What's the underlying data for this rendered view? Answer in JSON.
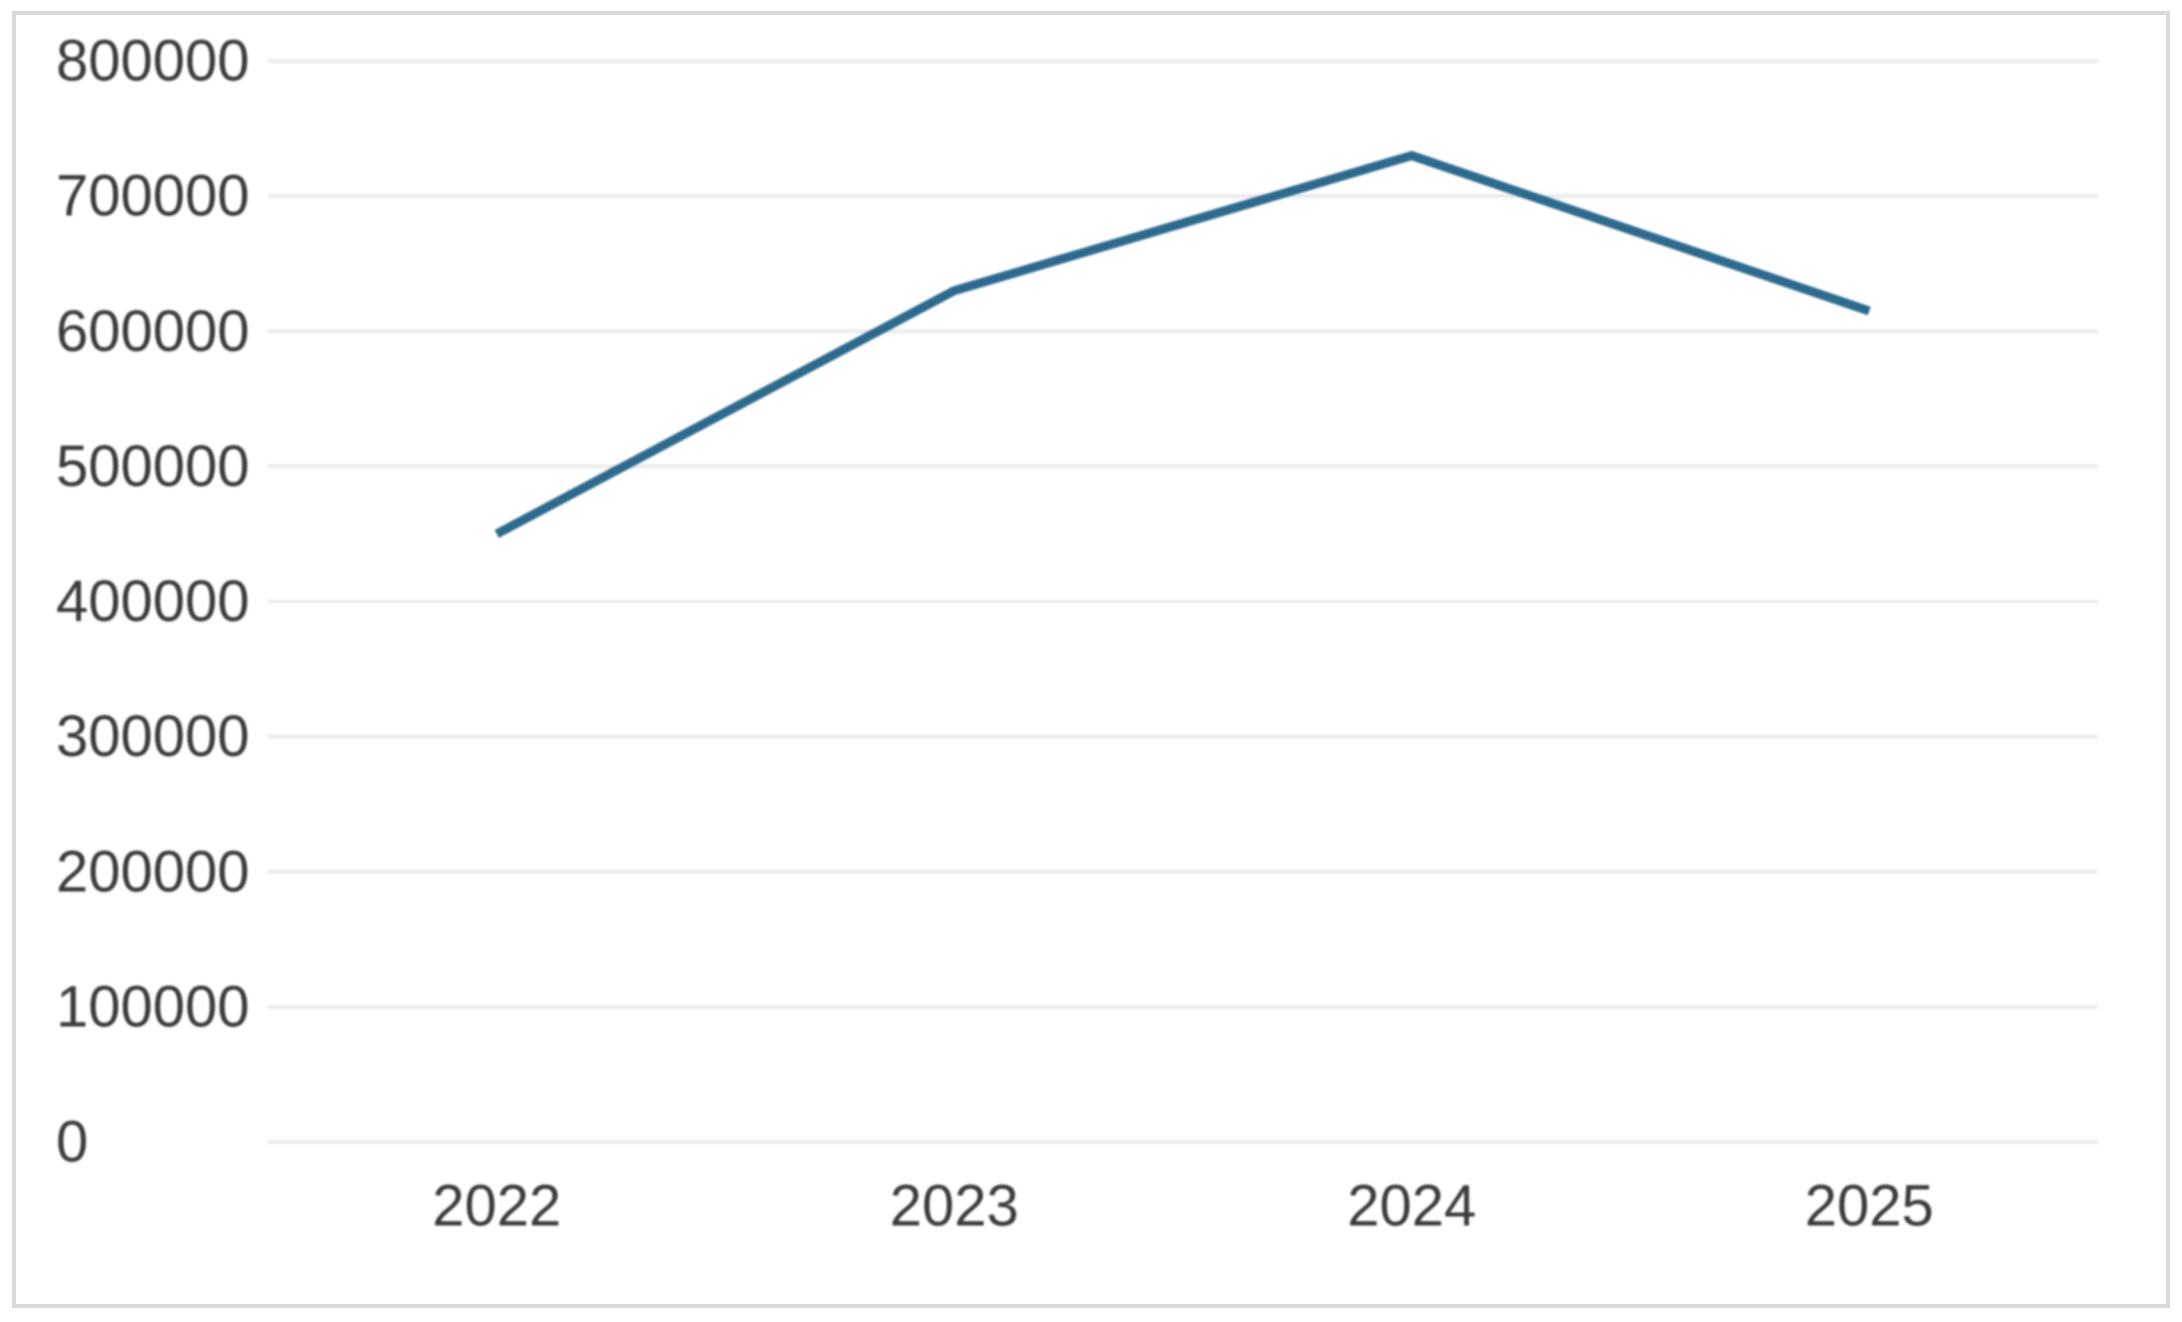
{
  "page": {
    "background": "#ffffff",
    "card_border_color": "#d9d9d9"
  },
  "chart_data": {
    "type": "line",
    "title": "",
    "xlabel": "",
    "ylabel": "",
    "categories": [
      "2022",
      "2023",
      "2024",
      "2025"
    ],
    "values": [
      450000,
      630000,
      730000,
      615000
    ],
    "ylim": [
      0,
      800000
    ],
    "y_tick_interval": 100000,
    "y_tick_labels": [
      "0",
      "100000",
      "200000",
      "300000",
      "400000",
      "500000",
      "600000",
      "700000",
      "800000"
    ],
    "x_tick_labels": [
      "2022",
      "2023",
      "2024",
      "2025"
    ],
    "grid": "horizontal gridlines only",
    "legend": "none",
    "line_color": "#2d6a8d",
    "gridline_color": "#ececec",
    "tick_label_color": "#3b3b3b"
  }
}
